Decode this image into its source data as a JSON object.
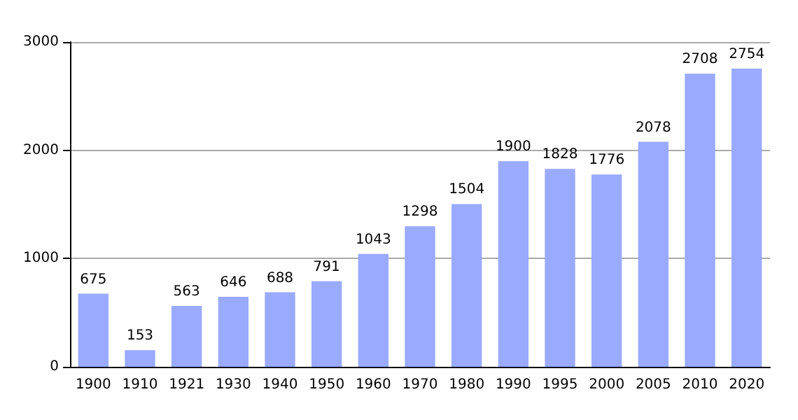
{
  "chart_data": {
    "type": "bar",
    "categories": [
      "1900",
      "1910",
      "1921",
      "1930",
      "1940",
      "1950",
      "1960",
      "1970",
      "1980",
      "1990",
      "1995",
      "2000",
      "2005",
      "2010",
      "2020"
    ],
    "values": [
      675,
      153,
      563,
      646,
      688,
      791,
      1043,
      1298,
      1504,
      1900,
      1828,
      1776,
      2078,
      2708,
      2754
    ],
    "color": "#99aaff",
    "ylim": [
      0,
      3000
    ],
    "yticks": [
      0,
      1000,
      2000,
      3000
    ],
    "grid": "y",
    "data_labels": true
  }
}
